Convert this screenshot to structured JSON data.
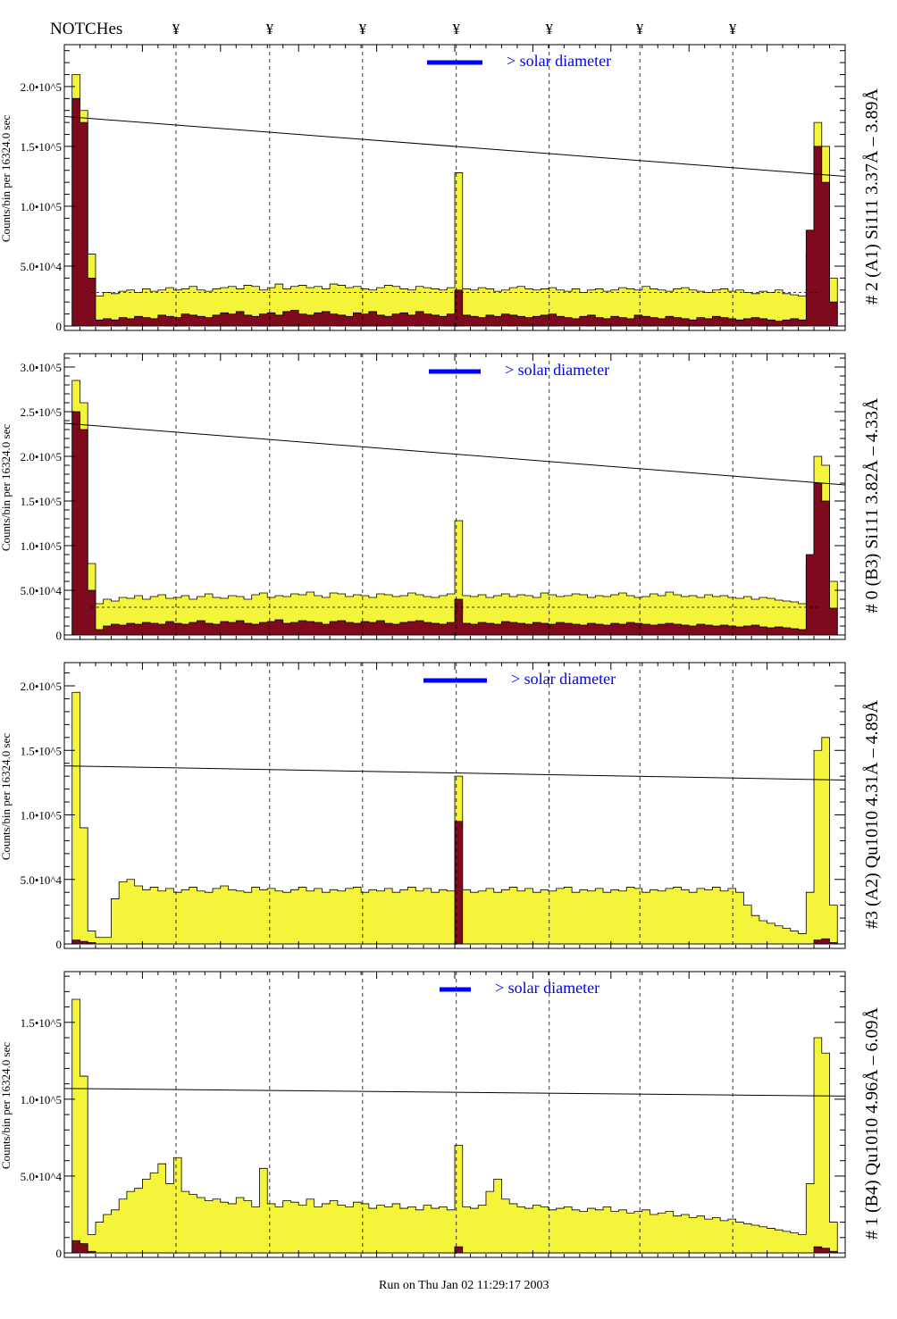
{
  "header": {
    "notches_label": "NOTCHes",
    "notch_symbol": "¥"
  },
  "footer": {
    "timestamp": "Run on Thu Jan 02 11:29:17 2003"
  },
  "colors": {
    "histogram_fill": "#f4f43a",
    "inner_fill": "#7f0a1e",
    "legend_blue": "#0000ff"
  },
  "chart_data": [
    {
      "type": "bar",
      "title": "# 2 (A1) Si111  3.37Å – 3.89Å",
      "ylabel": "Counts/bin per  16324.0 sec",
      "legend": "> solar diameter",
      "value_scale": 1000,
      "ylim": [
        0,
        235000
      ],
      "yticks": [
        0,
        50000,
        100000,
        150000,
        200000
      ],
      "ytick_labels": [
        "0",
        "5.0•10^4",
        "1.0•10^5",
        "1.5•10^5",
        "2.0•10^5"
      ],
      "xlim": [
        0,
        100
      ],
      "notches": [
        14.3,
        26.3,
        38.2,
        50.2,
        62.1,
        73.7,
        85.6
      ],
      "trend_line": [
        175000,
        125000
      ],
      "dashed_level": 28000,
      "series": [
        {
          "name": "total",
          "values": [
            0,
            210,
            180,
            60,
            25,
            28,
            27,
            29,
            30,
            28,
            31,
            29,
            30,
            32,
            30,
            31,
            33,
            30,
            29,
            31,
            32,
            33,
            31,
            34,
            33,
            30,
            32,
            35,
            31,
            33,
            34,
            32,
            33,
            31,
            35,
            34,
            32,
            33,
            31,
            30,
            32,
            34,
            33,
            31,
            30,
            33,
            32,
            31,
            30,
            32,
            128,
            31,
            30,
            32,
            31,
            29,
            30,
            32,
            33,
            31,
            30,
            31,
            32,
            30,
            29,
            31,
            28,
            30,
            31,
            29,
            30,
            32,
            31,
            30,
            33,
            31,
            30,
            29,
            31,
            32,
            30,
            29,
            28,
            30,
            31,
            29,
            30,
            28,
            27,
            29,
            28,
            30,
            27,
            26,
            25,
            60,
            170,
            150,
            40,
            0
          ]
        },
        {
          "name": "inner",
          "values": [
            0,
            190,
            170,
            40,
            5,
            6,
            5,
            7,
            6,
            8,
            7,
            6,
            9,
            8,
            7,
            10,
            9,
            8,
            7,
            9,
            11,
            10,
            12,
            9,
            8,
            10,
            11,
            9,
            12,
            13,
            10,
            9,
            11,
            12,
            10,
            9,
            8,
            11,
            10,
            12,
            9,
            8,
            10,
            11,
            9,
            12,
            10,
            9,
            8,
            10,
            30,
            9,
            8,
            7,
            9,
            8,
            10,
            9,
            8,
            7,
            8,
            9,
            10,
            8,
            7,
            6,
            8,
            9,
            7,
            6,
            8,
            7,
            6,
            9,
            8,
            7,
            6,
            8,
            7,
            6,
            5,
            7,
            6,
            8,
            7,
            6,
            5,
            6,
            7,
            6,
            5,
            4,
            5,
            6,
            5,
            80,
            150,
            120,
            20,
            0
          ]
        }
      ]
    },
    {
      "type": "bar",
      "title": "# 0 (B3) Si111  3.82Å – 4.33Å",
      "ylabel": "Counts/bin per  16324.0 sec",
      "legend": "> solar diameter",
      "value_scale": 1000,
      "ylim": [
        0,
        315000
      ],
      "yticks": [
        0,
        50000,
        100000,
        150000,
        200000,
        250000,
        300000
      ],
      "ytick_labels": [
        "0",
        "5.0•10^4",
        "1.0•10^5",
        "1.5•10^5",
        "2.0•10^5",
        "2.5•10^5",
        "3.0•10^5"
      ],
      "xlim": [
        0,
        100
      ],
      "notches": [
        14.3,
        26.3,
        38.2,
        50.2,
        62.1,
        73.7,
        85.6
      ],
      "trend_line": [
        237000,
        168000
      ],
      "dashed_level": 31000,
      "series": [
        {
          "name": "total",
          "values": [
            0,
            285,
            260,
            80,
            35,
            40,
            38,
            42,
            41,
            44,
            40,
            43,
            45,
            41,
            42,
            44,
            40,
            43,
            46,
            42,
            41,
            44,
            43,
            40,
            45,
            47,
            42,
            44,
            43,
            46,
            45,
            48,
            44,
            42,
            47,
            46,
            43,
            45,
            44,
            42,
            46,
            45,
            43,
            44,
            47,
            45,
            43,
            42,
            44,
            46,
            128,
            44,
            43,
            45,
            42,
            44,
            46,
            43,
            45,
            44,
            42,
            47,
            45,
            43,
            44,
            46,
            45,
            42,
            44,
            43,
            45,
            47,
            44,
            42,
            43,
            46,
            44,
            48,
            45,
            43,
            44,
            42,
            45,
            43,
            44,
            42,
            41,
            43,
            40,
            42,
            41,
            39,
            38,
            37,
            35,
            80,
            200,
            190,
            60,
            0
          ]
        },
        {
          "name": "inner",
          "values": [
            0,
            250,
            230,
            50,
            6,
            10,
            12,
            11,
            13,
            12,
            14,
            13,
            12,
            15,
            13,
            12,
            14,
            16,
            13,
            12,
            15,
            14,
            16,
            13,
            12,
            14,
            15,
            17,
            13,
            14,
            16,
            15,
            14,
            12,
            15,
            16,
            14,
            13,
            15,
            14,
            16,
            13,
            12,
            14,
            15,
            16,
            14,
            13,
            12,
            14,
            40,
            13,
            12,
            14,
            13,
            12,
            15,
            14,
            13,
            12,
            14,
            13,
            12,
            14,
            13,
            12,
            11,
            13,
            12,
            11,
            13,
            12,
            14,
            13,
            12,
            11,
            12,
            13,
            12,
            11,
            10,
            12,
            11,
            10,
            11,
            10,
            9,
            10,
            11,
            9,
            8,
            9,
            8,
            7,
            6,
            90,
            170,
            150,
            30,
            0
          ]
        }
      ]
    },
    {
      "type": "bar",
      "title": "#3 (A2) Qu1010  4.31Å – 4.89Å",
      "ylabel": "Counts/bin per  16324.0 sec",
      "legend": "> solar diameter",
      "value_scale": 1000,
      "ylim": [
        0,
        218000
      ],
      "yticks": [
        0,
        50000,
        100000,
        150000,
        200000
      ],
      "ytick_labels": [
        "0",
        "5.0•10^4",
        "1.0•10^5",
        "1.5•10^5",
        "2.0•10^5"
      ],
      "xlim": [
        0,
        100
      ],
      "notches": [
        14.3,
        26.3,
        38.2,
        50.2,
        62.1,
        73.7,
        85.6
      ],
      "trend_line": [
        138000,
        127000
      ],
      "dashed_level": null,
      "series": [
        {
          "name": "total",
          "values": [
            0,
            195,
            90,
            10,
            5,
            5,
            35,
            48,
            50,
            45,
            42,
            44,
            41,
            43,
            40,
            42,
            44,
            41,
            40,
            43,
            45,
            42,
            41,
            40,
            44,
            42,
            43,
            41,
            40,
            42,
            44,
            41,
            43,
            40,
            42,
            41,
            43,
            44,
            40,
            42,
            41,
            43,
            40,
            42,
            44,
            41,
            43,
            40,
            42,
            41,
            130,
            42,
            40,
            41,
            43,
            40,
            42,
            44,
            41,
            43,
            40,
            42,
            41,
            43,
            44,
            40,
            42,
            41,
            43,
            40,
            42,
            41,
            44,
            43,
            40,
            42,
            41,
            43,
            44,
            42,
            40,
            43,
            42,
            44,
            41,
            43,
            40,
            30,
            22,
            18,
            16,
            14,
            12,
            10,
            8,
            40,
            150,
            160,
            30,
            0
          ]
        },
        {
          "name": "inner",
          "values": [
            0,
            3,
            2,
            1,
            0,
            0,
            0,
            0,
            0,
            0,
            0,
            0,
            0,
            0,
            0,
            0,
            0,
            0,
            0,
            0,
            0,
            0,
            0,
            0,
            0,
            0,
            0,
            0,
            0,
            0,
            0,
            0,
            0,
            0,
            0,
            0,
            0,
            0,
            0,
            0,
            0,
            0,
            0,
            0,
            0,
            0,
            0,
            0,
            0,
            0,
            95,
            0,
            0,
            0,
            0,
            0,
            0,
            0,
            0,
            0,
            0,
            0,
            0,
            0,
            0,
            0,
            0,
            0,
            0,
            0,
            0,
            0,
            0,
            0,
            0,
            0,
            0,
            0,
            0,
            0,
            0,
            0,
            0,
            0,
            0,
            0,
            0,
            0,
            0,
            0,
            0,
            0,
            0,
            0,
            0,
            0,
            3,
            4,
            1,
            0
          ]
        }
      ]
    },
    {
      "type": "bar",
      "title": "# 1 (B4) Qu1010 4.96Å – 6.09Å",
      "ylabel": "Counts/bin per  16324.0 sec",
      "legend": "> solar diameter",
      "value_scale": 1000,
      "ylim": [
        0,
        183000
      ],
      "yticks": [
        0,
        50000,
        100000,
        150000
      ],
      "ytick_labels": [
        "0",
        "5.0•10^4",
        "1.0•10^5",
        "1.5•10^5"
      ],
      "xlim": [
        0,
        100
      ],
      "notches": [
        14.3,
        26.3,
        38.2,
        50.2,
        62.1,
        73.7,
        85.6
      ],
      "trend_line": [
        107000,
        102000
      ],
      "dashed_level": null,
      "series": [
        {
          "name": "total",
          "values": [
            0,
            165,
            115,
            12,
            20,
            25,
            28,
            35,
            40,
            42,
            48,
            52,
            58,
            45,
            62,
            40,
            38,
            36,
            34,
            35,
            33,
            32,
            36,
            34,
            30,
            55,
            32,
            30,
            34,
            33,
            31,
            35,
            30,
            32,
            34,
            31,
            30,
            33,
            32,
            29,
            31,
            30,
            32,
            29,
            30,
            28,
            31,
            29,
            30,
            28,
            70,
            30,
            29,
            31,
            40,
            48,
            35,
            32,
            30,
            29,
            31,
            30,
            28,
            29,
            30,
            28,
            27,
            29,
            28,
            30,
            27,
            28,
            26,
            27,
            28,
            25,
            26,
            27,
            24,
            25,
            23,
            24,
            22,
            23,
            21,
            22,
            20,
            19,
            18,
            17,
            16,
            15,
            14,
            13,
            12,
            45,
            140,
            130,
            20,
            0
          ]
        },
        {
          "name": "inner",
          "values": [
            0,
            8,
            6,
            1,
            0,
            0,
            0,
            0,
            0,
            0,
            0,
            0,
            0,
            0,
            0,
            0,
            0,
            0,
            0,
            0,
            0,
            0,
            0,
            0,
            0,
            0,
            0,
            0,
            0,
            0,
            0,
            0,
            0,
            0,
            0,
            0,
            0,
            0,
            0,
            0,
            0,
            0,
            0,
            0,
            0,
            0,
            0,
            0,
            0,
            0,
            4,
            0,
            0,
            0,
            0,
            0,
            0,
            0,
            0,
            0,
            0,
            0,
            0,
            0,
            0,
            0,
            0,
            0,
            0,
            0,
            0,
            0,
            0,
            0,
            0,
            0,
            0,
            0,
            0,
            0,
            0,
            0,
            0,
            0,
            0,
            0,
            0,
            0,
            0,
            0,
            0,
            0,
            0,
            0,
            0,
            0,
            4,
            3,
            1,
            0
          ]
        }
      ]
    }
  ]
}
